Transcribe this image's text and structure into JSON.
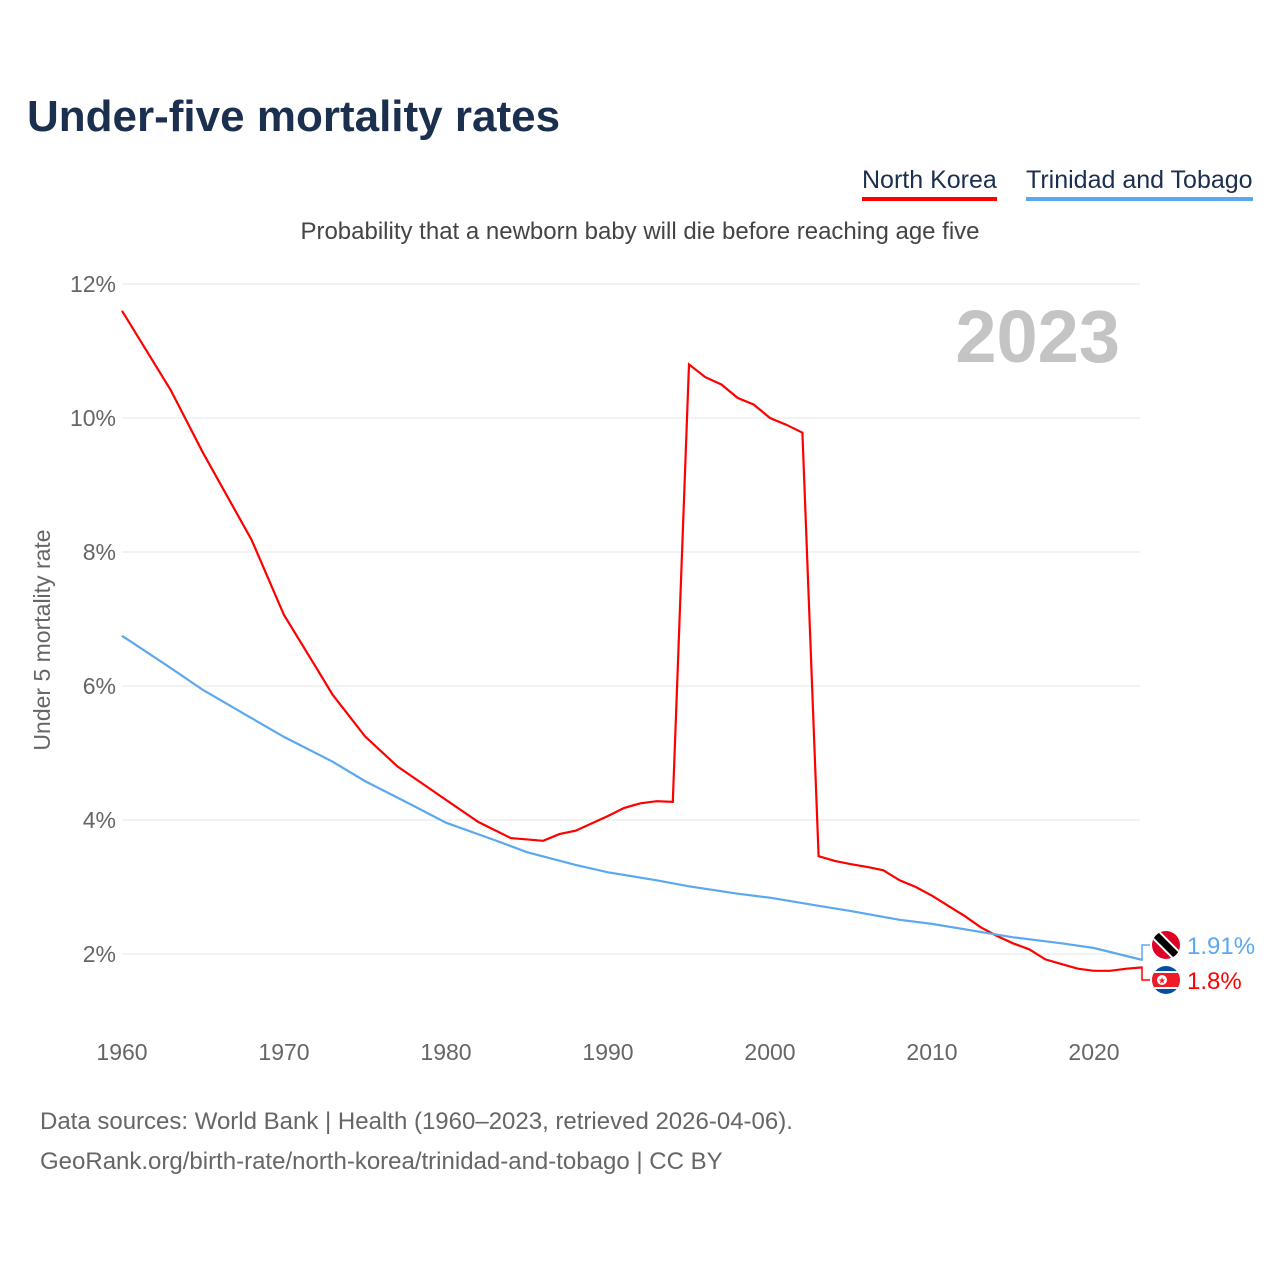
{
  "chart_data": {
    "type": "line",
    "title": "Under-five mortality rates",
    "subtitle": "Probability that a newborn baby will die before reaching age five",
    "ylabel": "Under 5 mortality rate",
    "xlabel": "",
    "ylim": [
      1,
      12
    ],
    "xlim": [
      1960,
      2023
    ],
    "yticks": [
      2,
      4,
      6,
      8,
      10,
      12
    ],
    "ytick_labels": [
      "2%",
      "4%",
      "6%",
      "8%",
      "10%",
      "12%"
    ],
    "xticks": [
      1960,
      1970,
      1980,
      1990,
      2000,
      2010,
      2020
    ],
    "xtick_labels": [
      "1960",
      "1970",
      "1980",
      "1990",
      "2000",
      "2010",
      "2020"
    ],
    "grid": true,
    "legend_placement": "top-right",
    "year_label": "2023",
    "series": [
      {
        "name": "North Korea",
        "color": "#ff0000",
        "end_label": "1.8%",
        "x": [
          1960,
          1963,
          1965,
          1968,
          1970,
          1972,
          1973,
          1975,
          1977,
          1980,
          1982,
          1984,
          1986,
          1987,
          1988,
          1990,
          1991,
          1992,
          1993,
          1994,
          1995,
          1996,
          1997,
          1998,
          1999,
          2000,
          2001,
          2002,
          2003,
          2004,
          2005,
          2006,
          2007,
          2008,
          2009,
          2010,
          2011,
          2012,
          2013,
          2014,
          2015,
          2016,
          2017,
          2018,
          2019,
          2020,
          2021,
          2022,
          2023
        ],
        "values": [
          11.6,
          10.42,
          9.48,
          8.18,
          7.06,
          6.27,
          5.87,
          5.25,
          4.8,
          4.3,
          3.97,
          3.73,
          3.69,
          3.79,
          3.84,
          4.06,
          4.18,
          4.25,
          4.28,
          4.27,
          10.8,
          10.61,
          10.5,
          10.3,
          10.2,
          10.0,
          9.9,
          9.78,
          3.46,
          3.39,
          3.34,
          3.3,
          3.25,
          3.1,
          3.0,
          2.87,
          2.72,
          2.57,
          2.4,
          2.27,
          2.16,
          2.07,
          1.92,
          1.85,
          1.78,
          1.75,
          1.75,
          1.78,
          1.8
        ]
      },
      {
        "name": "Trinidad and Tobago",
        "color": "#5ba8ee",
        "end_label": "1.91%",
        "x": [
          1960,
          1963,
          1965,
          1968,
          1970,
          1973,
          1975,
          1978,
          1980,
          1983,
          1985,
          1988,
          1990,
          1993,
          1995,
          1998,
          2000,
          2003,
          2005,
          2008,
          2010,
          2013,
          2015,
          2018,
          2020,
          2023
        ],
        "values": [
          6.75,
          6.27,
          5.94,
          5.52,
          5.24,
          4.87,
          4.58,
          4.21,
          3.96,
          3.7,
          3.52,
          3.33,
          3.22,
          3.1,
          3.01,
          2.9,
          2.84,
          2.72,
          2.64,
          2.51,
          2.45,
          2.33,
          2.25,
          2.16,
          2.09,
          1.91
        ]
      }
    ]
  },
  "footer": {
    "line1": "Data sources: World Bank | Health (1960–2023, retrieved 2026-04-06).",
    "line2": "GeoRank.org/birth-rate/north-korea/trinidad-and-tobago | CC BY"
  }
}
